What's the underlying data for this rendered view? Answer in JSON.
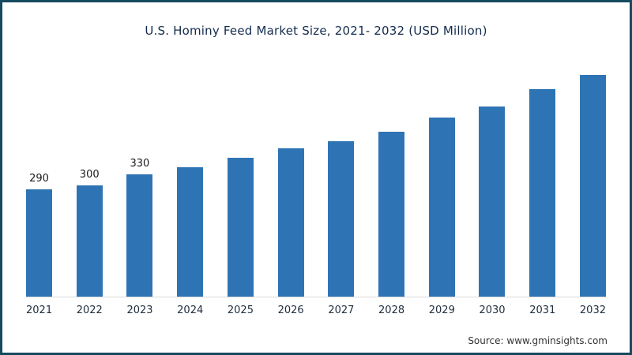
{
  "title": "U.S. Hominy Feed Market Size, 2021- 2032 (USD Million)",
  "source": "Source: www.gminsights.com",
  "colors": {
    "bar": "#2e74b5",
    "frame": "#164a5f",
    "title_text": "#132c4e",
    "axis_line": "#d9d9d9"
  },
  "chart_data": {
    "type": "bar",
    "title": "U.S. Hominy Feed Market Size, 2021- 2032 (USD Million)",
    "categories": [
      "2021",
      "2022",
      "2023",
      "2024",
      "2025",
      "2026",
      "2027",
      "2028",
      "2029",
      "2030",
      "2031",
      "2032"
    ],
    "values": [
      290,
      300,
      330,
      350,
      375,
      400,
      420,
      445,
      485,
      515,
      560,
      600
    ],
    "data_labels": [
      "290",
      "300",
      "330",
      "",
      "",
      "",
      "",
      "",
      "",
      "",
      "",
      ""
    ],
    "xlabel": "",
    "ylabel": "USD Million",
    "ylim": [
      0,
      640
    ],
    "grid": false,
    "legend": false,
    "source": "Source: www.gminsights.com"
  }
}
